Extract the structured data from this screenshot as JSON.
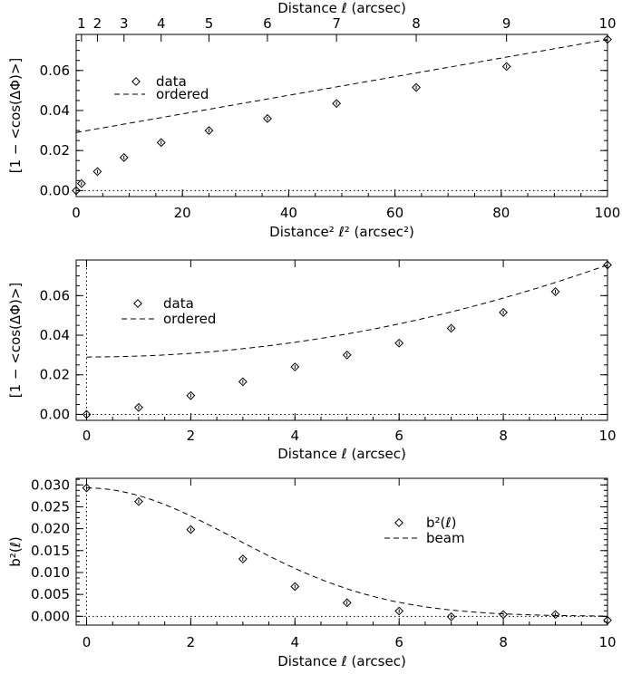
{
  "chart_data": [
    {
      "type": "scatter",
      "xlabel": "Distance² ℓ² (arcsec²)",
      "ylabel": "[1 − <cos(ΔΦ)>]",
      "xlim": [
        0,
        100
      ],
      "ylim": [
        -0.003,
        0.078
      ],
      "x_ticks": [
        "0",
        "20",
        "40",
        "60",
        "80",
        "100"
      ],
      "y_ticks": [
        "0.00",
        "0.02",
        "0.04",
        "0.06"
      ],
      "top_axis": {
        "label": "Distance ℓ (arcsec)",
        "ticks": [
          "1",
          "2",
          "3",
          "4",
          "5",
          "6",
          "7",
          "8",
          "9",
          "10"
        ]
      },
      "legend": [
        "data",
        "ordered"
      ],
      "series": [
        {
          "name": "data",
          "marker": "diamond",
          "x": [
            0,
            1,
            4,
            9,
            16,
            25,
            36,
            49,
            64,
            81,
            100
          ],
          "y": [
            0.0,
            0.0035,
            0.0095,
            0.0165,
            0.024,
            0.03,
            0.036,
            0.0435,
            0.0515,
            0.062,
            0.0755
          ]
        },
        {
          "name": "ordered",
          "style": "dashed",
          "form": "linear",
          "intercept": 0.029,
          "slope": 0.000465
        }
      ],
      "reference_lines": [
        {
          "axis": "y",
          "value": 0,
          "style": "dotted"
        }
      ]
    },
    {
      "type": "scatter",
      "xlabel": "Distance ℓ (arcsec)",
      "ylabel": "[1 − <cos(ΔΦ)>]",
      "xlim": [
        -0.2,
        10
      ],
      "ylim": [
        -0.003,
        0.078
      ],
      "x_ticks": [
        "0",
        "2",
        "4",
        "6",
        "8",
        "10"
      ],
      "y_ticks": [
        "0.00",
        "0.02",
        "0.04",
        "0.06"
      ],
      "legend": [
        "data",
        "ordered"
      ],
      "series": [
        {
          "name": "data",
          "marker": "diamond",
          "x": [
            0,
            1,
            2,
            3,
            4,
            5,
            6,
            7,
            8,
            9,
            10
          ],
          "y": [
            0.0,
            0.0035,
            0.0095,
            0.0165,
            0.024,
            0.03,
            0.036,
            0.0435,
            0.0515,
            0.062,
            0.0755
          ]
        },
        {
          "name": "ordered",
          "style": "dashed",
          "form": "quadratic",
          "intercept": 0.029,
          "coef": 0.000465
        }
      ],
      "reference_lines": [
        {
          "axis": "y",
          "value": 0,
          "style": "dotted"
        },
        {
          "axis": "x",
          "value": 0,
          "style": "dotted"
        }
      ]
    },
    {
      "type": "scatter",
      "xlabel": "Distance ℓ (arcsec)",
      "ylabel": "b²(ℓ)",
      "xlim": [
        -0.2,
        10
      ],
      "ylim": [
        -0.002,
        0.0315
      ],
      "x_ticks": [
        "0",
        "2",
        "4",
        "6",
        "8",
        "10"
      ],
      "y_ticks": [
        "0.000",
        "0.005",
        "0.010",
        "0.015",
        "0.020",
        "0.025",
        "0.030"
      ],
      "legend": [
        "b²(ℓ)",
        "beam"
      ],
      "series": [
        {
          "name": "b²(ℓ)",
          "marker": "diamond",
          "x": [
            0,
            1,
            2,
            3,
            4,
            5,
            6,
            7,
            8,
            9,
            10
          ],
          "y": [
            0.0293,
            0.0262,
            0.0198,
            0.0131,
            0.0068,
            0.0031,
            0.0012,
            -0.0001,
            0.0004,
            0.0004,
            -0.0009
          ]
        },
        {
          "name": "beam",
          "style": "dashed",
          "form": "gaussian",
          "amplitude": 0.0293,
          "sigma": 2.85
        }
      ],
      "reference_lines": [
        {
          "axis": "y",
          "value": 0,
          "style": "dotted"
        },
        {
          "axis": "x",
          "value": 0,
          "style": "dotted"
        }
      ]
    }
  ]
}
